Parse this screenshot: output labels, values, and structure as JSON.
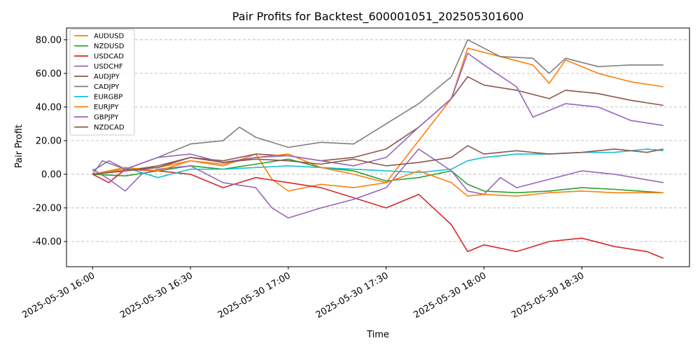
{
  "chart_data": {
    "type": "line",
    "title": "Pair Profits for Backtest_600001051_202505301600",
    "xlabel": "Time",
    "ylabel": "Pair Profit",
    "ylim": [
      -55,
      87
    ],
    "yticks": [
      -40,
      -20,
      0,
      20,
      40,
      60,
      80
    ],
    "ytick_labels": [
      "-40.00",
      "-20.00",
      "0.00",
      "20.00",
      "40.00",
      "60.00",
      "80.00"
    ],
    "xlim": [
      "2025-05-30 15:52",
      "2025-05-30 19:03"
    ],
    "xticks": [
      "2025-05-30 16:00",
      "2025-05-30 16:30",
      "2025-05-30 17:00",
      "2025-05-30 17:30",
      "2025-05-30 18:00",
      "2025-05-30 18:30"
    ],
    "xtick_labels": [
      "2025-05-30 16:00",
      "2025-05-30 16:30",
      "2025-05-30 17:00",
      "2025-05-30 17:30",
      "2025-05-30 18:00",
      "2025-05-30 18:30"
    ],
    "grid": "y-dashed",
    "legend_position": "top-left",
    "series": [
      {
        "name": "AUDUSD",
        "color": "#ff7f0e",
        "points": [
          [
            "2025-05-30 16:00",
            0
          ],
          [
            "2025-05-30 16:10",
            3
          ],
          [
            "2025-05-30 16:20",
            4
          ],
          [
            "2025-05-30 16:30",
            8
          ],
          [
            "2025-05-30 16:40",
            5
          ],
          [
            "2025-05-30 16:50",
            12
          ],
          [
            "2025-05-30 16:55",
            -3
          ],
          [
            "2025-05-30 17:00",
            -10
          ],
          [
            "2025-05-30 17:10",
            -6
          ],
          [
            "2025-05-30 17:20",
            -8
          ],
          [
            "2025-05-30 17:30",
            -5
          ],
          [
            "2025-05-30 17:40",
            20
          ],
          [
            "2025-05-30 17:50",
            45
          ],
          [
            "2025-05-30 17:55",
            75
          ],
          [
            "2025-05-30 18:05",
            70
          ],
          [
            "2025-05-30 18:15",
            65
          ],
          [
            "2025-05-30 18:20",
            54
          ],
          [
            "2025-05-30 18:25",
            68
          ],
          [
            "2025-05-30 18:35",
            60
          ],
          [
            "2025-05-30 18:45",
            55
          ],
          [
            "2025-05-30 18:55",
            52
          ]
        ]
      },
      {
        "name": "NZDUSD",
        "color": "#2ca02c",
        "points": [
          [
            "2025-05-30 16:00",
            0
          ],
          [
            "2025-05-30 16:10",
            -1
          ],
          [
            "2025-05-30 16:20",
            2
          ],
          [
            "2025-05-30 16:30",
            5
          ],
          [
            "2025-05-30 16:40",
            3
          ],
          [
            "2025-05-30 16:50",
            6
          ],
          [
            "2025-05-30 17:00",
            9
          ],
          [
            "2025-05-30 17:10",
            4
          ],
          [
            "2025-05-30 17:20",
            2
          ],
          [
            "2025-05-30 17:30",
            -4
          ],
          [
            "2025-05-30 17:40",
            -2
          ],
          [
            "2025-05-30 17:50",
            2
          ],
          [
            "2025-05-30 17:55",
            -6
          ],
          [
            "2025-05-30 18:00",
            -10
          ],
          [
            "2025-05-30 18:10",
            -11
          ],
          [
            "2025-05-30 18:20",
            -10
          ],
          [
            "2025-05-30 18:30",
            -8
          ],
          [
            "2025-05-30 18:40",
            -9
          ],
          [
            "2025-05-30 18:55",
            -11
          ]
        ]
      },
      {
        "name": "USDCAD",
        "color": "#d62728",
        "points": [
          [
            "2025-05-30 16:00",
            0
          ],
          [
            "2025-05-30 16:05",
            -5
          ],
          [
            "2025-05-30 16:10",
            3
          ],
          [
            "2025-05-30 16:20",
            2
          ],
          [
            "2025-05-30 16:30",
            0
          ],
          [
            "2025-05-30 16:40",
            -8
          ],
          [
            "2025-05-30 16:50",
            -2
          ],
          [
            "2025-05-30 17:00",
            -5
          ],
          [
            "2025-05-30 17:10",
            -8
          ],
          [
            "2025-05-30 17:20",
            -14
          ],
          [
            "2025-05-30 17:30",
            -20
          ],
          [
            "2025-05-30 17:40",
            -12
          ],
          [
            "2025-05-30 17:50",
            -30
          ],
          [
            "2025-05-30 17:55",
            -46
          ],
          [
            "2025-05-30 18:00",
            -42
          ],
          [
            "2025-05-30 18:10",
            -46
          ],
          [
            "2025-05-30 18:20",
            -40
          ],
          [
            "2025-05-30 18:30",
            -38
          ],
          [
            "2025-05-30 18:40",
            -43
          ],
          [
            "2025-05-30 18:50",
            -46
          ],
          [
            "2025-05-30 18:55",
            -50
          ]
        ]
      },
      {
        "name": "USDCHF",
        "color": "#9467bd",
        "points": [
          [
            "2025-05-30 16:00",
            3
          ],
          [
            "2025-05-30 16:05",
            -3
          ],
          [
            "2025-05-30 16:10",
            -10
          ],
          [
            "2025-05-30 16:15",
            0
          ],
          [
            "2025-05-30 16:20",
            3
          ],
          [
            "2025-05-30 16:30",
            5
          ],
          [
            "2025-05-30 16:40",
            -5
          ],
          [
            "2025-05-30 16:50",
            -8
          ],
          [
            "2025-05-30 16:55",
            -20
          ],
          [
            "2025-05-30 17:00",
            -26
          ],
          [
            "2025-05-30 17:10",
            -20
          ],
          [
            "2025-05-30 17:20",
            -15
          ],
          [
            "2025-05-30 17:30",
            -8
          ],
          [
            "2025-05-30 17:40",
            15
          ],
          [
            "2025-05-30 17:50",
            2
          ],
          [
            "2025-05-30 17:55",
            -10
          ],
          [
            "2025-05-30 18:00",
            -12
          ],
          [
            "2025-05-30 18:05",
            -2
          ],
          [
            "2025-05-30 18:10",
            -8
          ],
          [
            "2025-05-30 18:20",
            -3
          ],
          [
            "2025-05-30 18:30",
            2
          ],
          [
            "2025-05-30 18:40",
            0
          ],
          [
            "2025-05-30 18:55",
            -5
          ]
        ]
      },
      {
        "name": "AUDJPY",
        "color": "#8c564b",
        "points": [
          [
            "2025-05-30 16:00",
            0
          ],
          [
            "2025-05-30 16:10",
            2
          ],
          [
            "2025-05-30 16:20",
            5
          ],
          [
            "2025-05-30 16:30",
            10
          ],
          [
            "2025-05-30 16:40",
            8
          ],
          [
            "2025-05-30 16:50",
            12
          ],
          [
            "2025-05-30 17:00",
            11
          ],
          [
            "2025-05-30 17:10",
            8
          ],
          [
            "2025-05-30 17:20",
            10
          ],
          [
            "2025-05-30 17:30",
            15
          ],
          [
            "2025-05-30 17:40",
            28
          ],
          [
            "2025-05-30 17:50",
            45
          ],
          [
            "2025-05-30 17:55",
            58
          ],
          [
            "2025-05-30 18:00",
            53
          ],
          [
            "2025-05-30 18:10",
            50
          ],
          [
            "2025-05-30 18:20",
            45
          ],
          [
            "2025-05-30 18:25",
            50
          ],
          [
            "2025-05-30 18:35",
            48
          ],
          [
            "2025-05-30 18:45",
            44
          ],
          [
            "2025-05-30 18:55",
            41
          ]
        ]
      },
      {
        "name": "CADJPY",
        "color": "#7f7f7f",
        "points": [
          [
            "2025-05-30 16:00",
            0
          ],
          [
            "2025-05-30 16:03",
            8
          ],
          [
            "2025-05-30 16:10",
            3
          ],
          [
            "2025-05-30 16:20",
            10
          ],
          [
            "2025-05-30 16:30",
            18
          ],
          [
            "2025-05-30 16:40",
            20
          ],
          [
            "2025-05-30 16:45",
            28
          ],
          [
            "2025-05-30 16:50",
            22
          ],
          [
            "2025-05-30 17:00",
            16
          ],
          [
            "2025-05-30 17:10",
            19
          ],
          [
            "2025-05-30 17:20",
            18
          ],
          [
            "2025-05-30 17:30",
            30
          ],
          [
            "2025-05-30 17:40",
            42
          ],
          [
            "2025-05-30 17:50",
            58
          ],
          [
            "2025-05-30 17:55",
            80
          ],
          [
            "2025-05-30 18:05",
            70
          ],
          [
            "2025-05-30 18:15",
            69
          ],
          [
            "2025-05-30 18:20",
            60
          ],
          [
            "2025-05-30 18:25",
            69
          ],
          [
            "2025-05-30 18:35",
            64
          ],
          [
            "2025-05-30 18:45",
            65
          ],
          [
            "2025-05-30 18:55",
            65
          ]
        ]
      },
      {
        "name": "EURGBP",
        "color": "#17becf",
        "points": [
          [
            "2025-05-30 16:00",
            0
          ],
          [
            "2025-05-30 16:10",
            4
          ],
          [
            "2025-05-30 16:20",
            -2
          ],
          [
            "2025-05-30 16:30",
            3
          ],
          [
            "2025-05-30 16:40",
            3
          ],
          [
            "2025-05-30 16:50",
            4
          ],
          [
            "2025-05-30 17:00",
            5
          ],
          [
            "2025-05-30 17:10",
            4
          ],
          [
            "2025-05-30 17:20",
            3
          ],
          [
            "2025-05-30 17:30",
            2
          ],
          [
            "2025-05-30 17:40",
            1
          ],
          [
            "2025-05-30 17:50",
            3
          ],
          [
            "2025-05-30 17:55",
            8
          ],
          [
            "2025-05-30 18:00",
            10
          ],
          [
            "2025-05-30 18:10",
            12
          ],
          [
            "2025-05-30 18:20",
            12
          ],
          [
            "2025-05-30 18:30",
            13
          ],
          [
            "2025-05-30 18:40",
            13
          ],
          [
            "2025-05-30 18:50",
            15
          ],
          [
            "2025-05-30 18:55",
            14
          ]
        ]
      },
      {
        "name": "EURJPY",
        "color": "#ff7f0e",
        "points": [
          [
            "2025-05-30 16:00",
            0
          ],
          [
            "2025-05-30 16:10",
            4
          ],
          [
            "2025-05-30 16:20",
            2
          ],
          [
            "2025-05-30 16:30",
            8
          ],
          [
            "2025-05-30 16:40",
            6
          ],
          [
            "2025-05-30 16:50",
            10
          ],
          [
            "2025-05-30 17:00",
            12
          ],
          [
            "2025-05-30 17:10",
            4
          ],
          [
            "2025-05-30 17:20",
            0
          ],
          [
            "2025-05-30 17:30",
            -5
          ],
          [
            "2025-05-30 17:40",
            2
          ],
          [
            "2025-05-30 17:50",
            -5
          ],
          [
            "2025-05-30 17:55",
            -13
          ],
          [
            "2025-05-30 18:00",
            -12
          ],
          [
            "2025-05-30 18:10",
            -13
          ],
          [
            "2025-05-30 18:20",
            -11
          ],
          [
            "2025-05-30 18:30",
            -10
          ],
          [
            "2025-05-30 18:40",
            -11
          ],
          [
            "2025-05-30 18:55",
            -11
          ]
        ]
      },
      {
        "name": "GBPJPY",
        "color": "#9467bd",
        "points": [
          [
            "2025-05-30 16:00",
            2
          ],
          [
            "2025-05-30 16:05",
            8
          ],
          [
            "2025-05-30 16:10",
            3
          ],
          [
            "2025-05-30 16:20",
            10
          ],
          [
            "2025-05-30 16:30",
            12
          ],
          [
            "2025-05-30 16:40",
            7
          ],
          [
            "2025-05-30 16:50",
            10
          ],
          [
            "2025-05-30 17:00",
            11
          ],
          [
            "2025-05-30 17:10",
            8
          ],
          [
            "2025-05-30 17:20",
            5
          ],
          [
            "2025-05-30 17:30",
            10
          ],
          [
            "2025-05-30 17:40",
            28
          ],
          [
            "2025-05-30 17:50",
            45
          ],
          [
            "2025-05-30 17:55",
            72
          ],
          [
            "2025-05-30 18:00",
            65
          ],
          [
            "2025-05-30 18:10",
            52
          ],
          [
            "2025-05-30 18:15",
            34
          ],
          [
            "2025-05-30 18:25",
            42
          ],
          [
            "2025-05-30 18:35",
            40
          ],
          [
            "2025-05-30 18:45",
            32
          ],
          [
            "2025-05-30 18:55",
            29
          ]
        ]
      },
      {
        "name": "NZDCAD",
        "color": "#8c564b",
        "points": [
          [
            "2025-05-30 16:00",
            0
          ],
          [
            "2025-05-30 16:10",
            2
          ],
          [
            "2025-05-30 16:20",
            4
          ],
          [
            "2025-05-30 16:30",
            10
          ],
          [
            "2025-05-30 16:40",
            7
          ],
          [
            "2025-05-30 16:50",
            9
          ],
          [
            "2025-05-30 17:00",
            8
          ],
          [
            "2025-05-30 17:10",
            6
          ],
          [
            "2025-05-30 17:20",
            9
          ],
          [
            "2025-05-30 17:30",
            5
          ],
          [
            "2025-05-30 17:40",
            7
          ],
          [
            "2025-05-30 17:50",
            10
          ],
          [
            "2025-05-30 17:55",
            17
          ],
          [
            "2025-05-30 18:00",
            12
          ],
          [
            "2025-05-30 18:10",
            14
          ],
          [
            "2025-05-30 18:20",
            12
          ],
          [
            "2025-05-30 18:30",
            13
          ],
          [
            "2025-05-30 18:40",
            15
          ],
          [
            "2025-05-30 18:50",
            13
          ],
          [
            "2025-05-30 18:55",
            15
          ]
        ]
      }
    ]
  }
}
